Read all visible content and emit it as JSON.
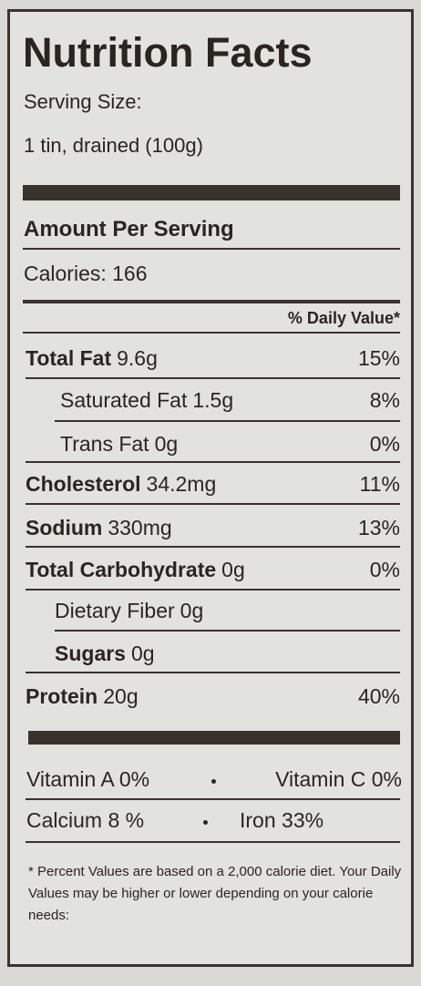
{
  "header": {
    "title": "Nutrition Facts",
    "serving_size_label": "Serving Size:",
    "serving_size": "1 tin, drained (100g)"
  },
  "amount_per_serving": "Amount Per Serving",
  "calories": "Calories: 166",
  "daily_value_header": "% Daily Value*",
  "nutrients": [
    {
      "label": "Total Fat",
      "amount": "9.6g",
      "daily_value": "15%"
    },
    {
      "label": "Saturated Fat",
      "amount": "1.5g",
      "daily_value": "8%"
    },
    {
      "label": "Trans Fat",
      "amount": "0g",
      "daily_value": "0%"
    },
    {
      "label": "Cholesterol",
      "amount": "34.2mg",
      "daily_value": "11%"
    },
    {
      "label": "Sodium",
      "amount": "330mg",
      "daily_value": "13%"
    },
    {
      "label": "Total Carbohydrate",
      "amount": "0g",
      "daily_value": "0%"
    },
    {
      "label": "Dietary Fiber",
      "amount": "0g"
    },
    {
      "label": "Sugars",
      "amount": "0g"
    },
    {
      "label": "Protein",
      "amount": "20g",
      "daily_value": "40%"
    }
  ],
  "vitamins": [
    [
      "Vitamin A 0%",
      "Vitamin C 0%"
    ],
    [
      "Calcium 8 %",
      "Iron 33%"
    ]
  ],
  "footnote": "* Percent Values are based on a 2,000 calorie diet. Your Daily Values may be higher or lower depending on your calorie needs:"
}
